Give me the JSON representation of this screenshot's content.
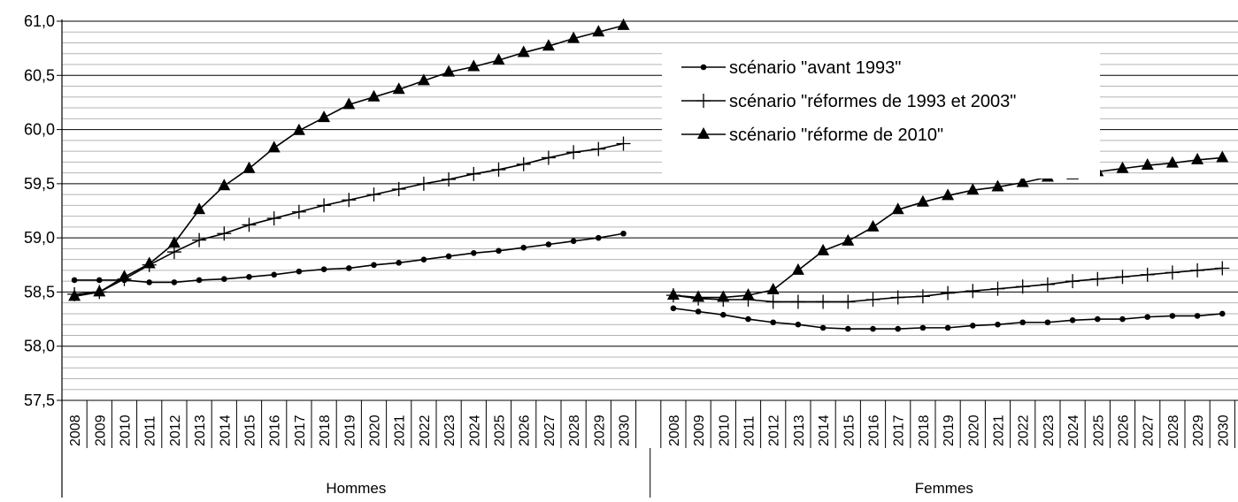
{
  "chart_data": {
    "type": "line",
    "title": "",
    "xlabel": "",
    "ylabel": "",
    "ylim": [
      57.5,
      61.0
    ],
    "y_ticks": [
      "57,5",
      "58,0",
      "58,5",
      "59,0",
      "59,5",
      "60,0",
      "60,5",
      "61,0"
    ],
    "grid": true,
    "legend_position": "top-right",
    "groups": [
      "Hommes",
      "Femmes"
    ],
    "categories": [
      "2008",
      "2009",
      "2010",
      "2011",
      "2012",
      "2013",
      "2014",
      "2015",
      "2016",
      "2017",
      "2018",
      "2019",
      "2020",
      "2021",
      "2022",
      "2023",
      "2024",
      "2025",
      "2026",
      "2027",
      "2028",
      "2029",
      "2030"
    ],
    "series": [
      {
        "name": "scénario \"avant 1993\"",
        "marker": "circle",
        "hommes": [
          58.61,
          58.61,
          58.61,
          58.59,
          58.59,
          58.61,
          58.62,
          58.64,
          58.66,
          58.69,
          58.71,
          58.72,
          58.75,
          58.77,
          58.8,
          58.83,
          58.86,
          58.88,
          58.91,
          58.94,
          58.97,
          59.0,
          59.04
        ],
        "femmes": [
          58.35,
          58.32,
          58.29,
          58.25,
          58.22,
          58.2,
          58.17,
          58.16,
          58.16,
          58.16,
          58.17,
          58.17,
          58.19,
          58.2,
          58.22,
          58.22,
          58.24,
          58.25,
          58.25,
          58.27,
          58.28,
          58.28,
          58.3
        ]
      },
      {
        "name": "scénario \"réformes de 1993 et 2003\"",
        "marker": "plus",
        "hommes": [
          58.48,
          58.5,
          58.62,
          58.75,
          58.87,
          58.98,
          59.04,
          59.12,
          59.18,
          59.24,
          59.3,
          59.35,
          59.4,
          59.45,
          59.5,
          59.54,
          59.59,
          59.63,
          59.68,
          59.74,
          59.79,
          59.82,
          59.87
        ],
        "femmes": [
          58.47,
          58.44,
          58.43,
          58.43,
          58.41,
          58.41,
          58.41,
          58.41,
          58.43,
          58.45,
          58.46,
          58.49,
          58.51,
          58.53,
          58.55,
          58.57,
          58.6,
          58.62,
          58.64,
          58.66,
          58.68,
          58.7,
          58.72
        ]
      },
      {
        "name": "scénario \"réforme de 2010\"",
        "marker": "triangle",
        "hommes": [
          58.46,
          58.5,
          58.64,
          58.76,
          58.95,
          59.26,
          59.48,
          59.64,
          59.83,
          59.99,
          60.11,
          60.23,
          60.3,
          60.37,
          60.45,
          60.53,
          60.58,
          60.64,
          60.71,
          60.77,
          60.84,
          60.9,
          60.96
        ],
        "femmes": [
          58.47,
          58.45,
          58.45,
          58.47,
          58.52,
          58.7,
          58.88,
          58.97,
          59.1,
          59.26,
          59.33,
          59.39,
          59.44,
          59.47,
          59.51,
          59.56,
          59.58,
          59.61,
          59.64,
          59.67,
          59.69,
          59.72,
          59.74
        ]
      }
    ]
  }
}
